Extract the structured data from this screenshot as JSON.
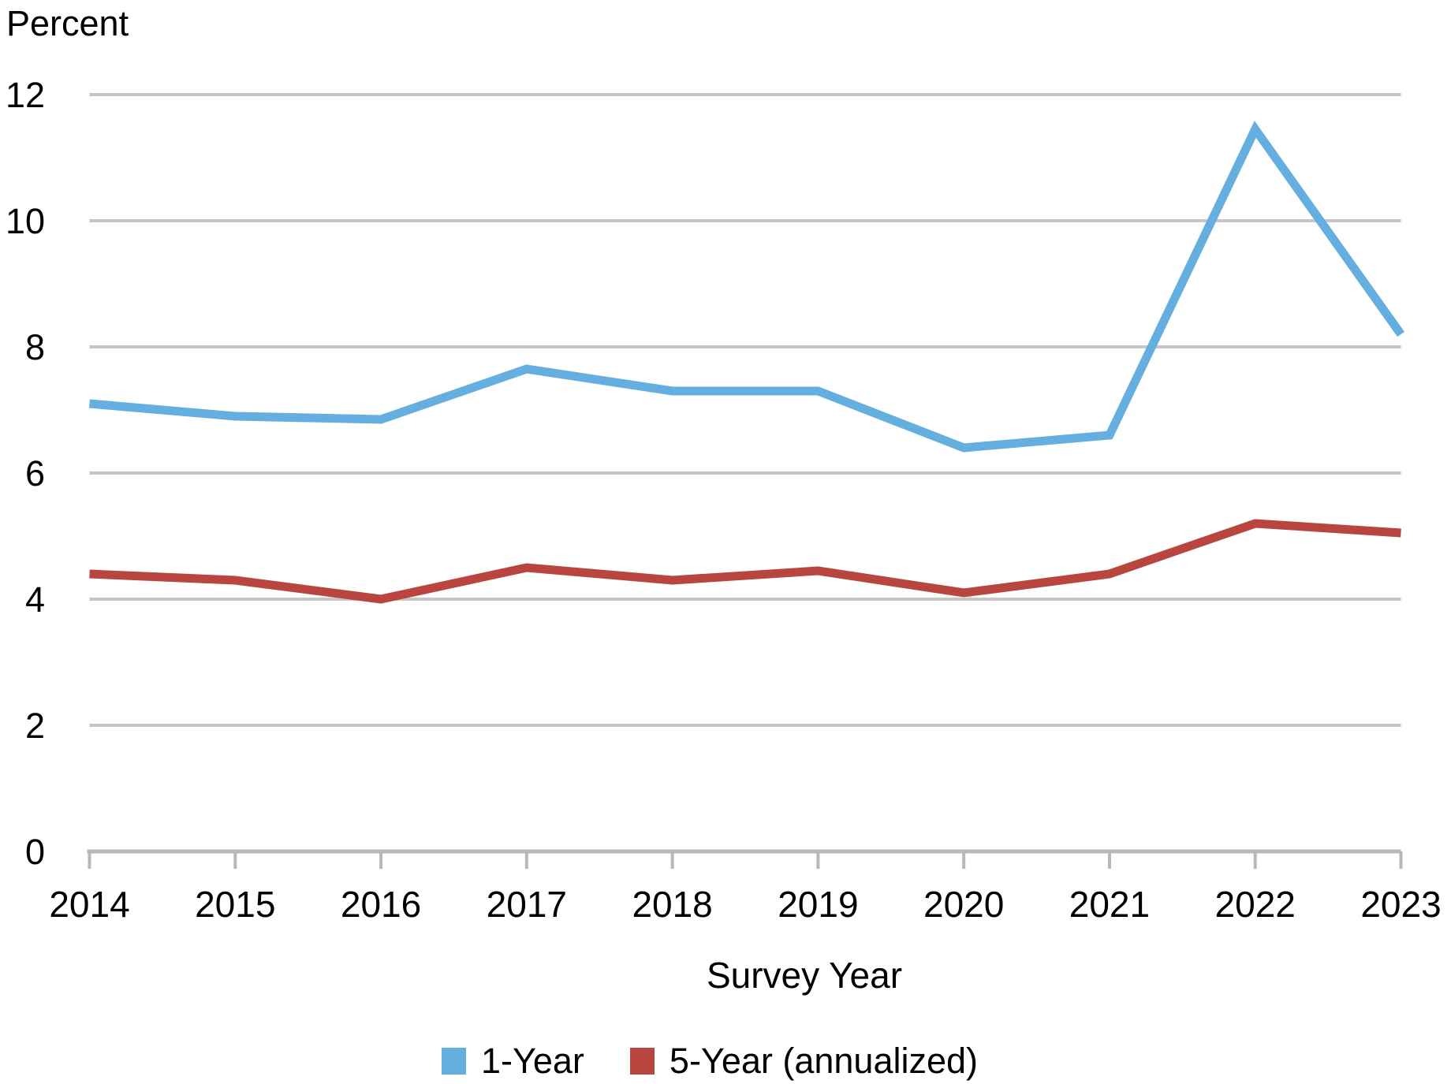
{
  "chart_data": {
    "type": "line",
    "axis_title": "Percent",
    "xlabel": "Survey Year",
    "categories": [
      "2014",
      "2015",
      "2016",
      "2017",
      "2018",
      "2019",
      "2020",
      "2021",
      "2022",
      "2023"
    ],
    "series": [
      {
        "name": "1-Year",
        "color": "#65AFE0",
        "values": [
          7.1,
          6.9,
          6.85,
          7.65,
          7.3,
          7.3,
          6.4,
          6.6,
          11.45,
          8.2
        ]
      },
      {
        "name": "5-Year (annualized)",
        "color": "#B9453F",
        "values": [
          4.4,
          4.3,
          4.0,
          4.5,
          4.3,
          4.45,
          4.1,
          4.4,
          5.2,
          5.05
        ]
      }
    ],
    "ylim": [
      0,
      12
    ],
    "yticks": [
      0,
      2,
      4,
      6,
      8,
      10,
      12
    ],
    "grid": "horizontal gridlines on",
    "legend_position": "bottom center",
    "gridline_color": "#C7C7C7",
    "axis_color": "#B8B8B8",
    "text_color": "#000000"
  }
}
